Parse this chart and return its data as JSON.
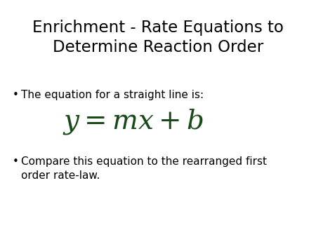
{
  "title_line1": "Enrichment - Rate Equations to",
  "title_line2": "Determine Reaction Order",
  "title_fontsize": 16.5,
  "title_color": "#000000",
  "bullet1": "The equation for a straight line is:",
  "bullet1_fontsize": 11,
  "equation": "$y = mx + b$",
  "equation_fontsize": 28,
  "equation_color": "#1a4a1a",
  "bullet2_line1": "Compare this equation to the rearranged first",
  "bullet2_line2": "order rate-law.",
  "bullet2_fontsize": 11,
  "bullet_color": "#000000",
  "background_color": "#ffffff",
  "bullet_symbol": "•"
}
